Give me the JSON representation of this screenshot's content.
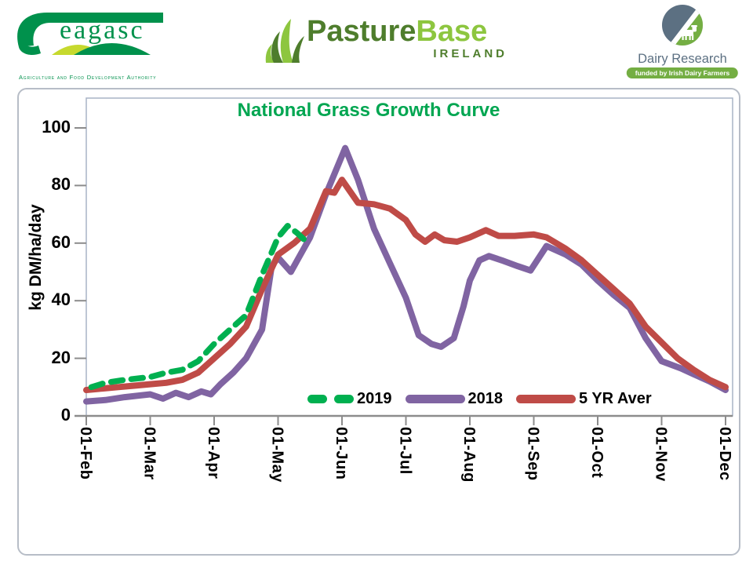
{
  "logos": {
    "teagasc": {
      "wordmark": "eagasc",
      "tagline": "Agriculture and Food Development Authority",
      "green": "#00914c",
      "hill_yellow": "#c6d92e"
    },
    "pasturebase": {
      "word1": "Pasture",
      "word2": "Base",
      "word3": "IRELAND",
      "dark_green": "#4e7d2c",
      "lime": "#8dc63f"
    },
    "dairy_research": {
      "name": "Dairy Research Ireland",
      "tagline": "funded by Irish Dairy Farmers",
      "slate": "#5c7082",
      "green": "#74ae43"
    }
  },
  "chart_data": {
    "type": "line",
    "title": "National Grass Growth Curve",
    "title_color": "#00a651",
    "ylabel": "kg DM/ha/day",
    "ylim": [
      0,
      100
    ],
    "yticks": [
      0,
      20,
      40,
      60,
      80,
      100
    ],
    "grid": false,
    "x_axis": {
      "unit": "months after 01-Feb",
      "tick_positions": [
        0,
        1,
        2,
        3,
        4,
        5,
        6,
        7,
        8,
        9,
        10
      ],
      "tick_labels": [
        "01-Feb",
        "01-Mar",
        "01-Apr",
        "01-May",
        "01-Jun",
        "01-Jul",
        "01-Aug",
        "01-Sep",
        "01-Oct",
        "01-Nov",
        "01-Dec"
      ]
    },
    "legend": {
      "position": "inside-bottom-center",
      "order": [
        "2019",
        "2018",
        "5 YR Aver"
      ]
    },
    "series": [
      {
        "name": "2019",
        "color": "#00b050",
        "style": "dashed",
        "line_width": 7.5,
        "draw_order": 3,
        "points": [
          [
            0.08,
            10
          ],
          [
            0.3,
            11.5
          ],
          [
            0.6,
            12.5
          ],
          [
            1,
            13.5
          ],
          [
            1.25,
            15
          ],
          [
            1.5,
            16
          ],
          [
            1.75,
            19
          ],
          [
            2,
            25
          ],
          [
            2.25,
            30
          ],
          [
            2.5,
            35
          ],
          [
            2.75,
            49
          ],
          [
            3,
            62
          ],
          [
            3.15,
            66
          ],
          [
            3.3,
            63.5
          ],
          [
            3.42,
            61
          ]
        ]
      },
      {
        "name": "2018",
        "color": "#8064a2",
        "style": "solid",
        "line_width": 8,
        "draw_order": 1,
        "points": [
          [
            0,
            5
          ],
          [
            0.3,
            5.5
          ],
          [
            0.6,
            6.5
          ],
          [
            1,
            7.5
          ],
          [
            1.2,
            6
          ],
          [
            1.4,
            8
          ],
          [
            1.6,
            6.5
          ],
          [
            1.8,
            8.5
          ],
          [
            1.95,
            7.5
          ],
          [
            2.1,
            11
          ],
          [
            2.3,
            15
          ],
          [
            2.5,
            20
          ],
          [
            2.75,
            30
          ],
          [
            2.9,
            52
          ],
          [
            3,
            55
          ],
          [
            3.2,
            50
          ],
          [
            3.5,
            62
          ],
          [
            3.75,
            77
          ],
          [
            4.05,
            93
          ],
          [
            4.25,
            82
          ],
          [
            4.5,
            65
          ],
          [
            4.75,
            53
          ],
          [
            5,
            41
          ],
          [
            5.2,
            28
          ],
          [
            5.4,
            25
          ],
          [
            5.55,
            24
          ],
          [
            5.75,
            27
          ],
          [
            5.9,
            38
          ],
          [
            6,
            47
          ],
          [
            6.15,
            54
          ],
          [
            6.3,
            55.5
          ],
          [
            6.5,
            54
          ],
          [
            6.75,
            52
          ],
          [
            6.95,
            50.5
          ],
          [
            7.2,
            59
          ],
          [
            7.5,
            56
          ],
          [
            7.75,
            52.5
          ],
          [
            8,
            47
          ],
          [
            8.25,
            42
          ],
          [
            8.5,
            37.5
          ],
          [
            8.75,
            27
          ],
          [
            9,
            19
          ],
          [
            9.3,
            16.5
          ],
          [
            9.5,
            14.5
          ],
          [
            9.75,
            12
          ],
          [
            10,
            9
          ]
        ]
      },
      {
        "name": "5 YR Aver",
        "color": "#bf4b47",
        "style": "solid",
        "line_width": 8,
        "draw_order": 2,
        "points": [
          [
            0,
            9
          ],
          [
            0.25,
            9.5
          ],
          [
            0.5,
            10
          ],
          [
            0.75,
            10.5
          ],
          [
            1,
            11
          ],
          [
            1.25,
            11.5
          ],
          [
            1.5,
            12.5
          ],
          [
            1.75,
            15
          ],
          [
            2,
            20
          ],
          [
            2.25,
            25
          ],
          [
            2.5,
            31
          ],
          [
            2.75,
            44
          ],
          [
            3,
            56
          ],
          [
            3.25,
            60
          ],
          [
            3.5,
            65
          ],
          [
            3.75,
            78
          ],
          [
            3.88,
            77.5
          ],
          [
            4,
            82
          ],
          [
            4.25,
            74
          ],
          [
            4.5,
            73.5
          ],
          [
            4.75,
            72
          ],
          [
            5,
            68
          ],
          [
            5.15,
            63
          ],
          [
            5.3,
            60.5
          ],
          [
            5.45,
            63
          ],
          [
            5.6,
            61
          ],
          [
            5.8,
            60.5
          ],
          [
            6,
            62
          ],
          [
            6.25,
            64.5
          ],
          [
            6.45,
            62.5
          ],
          [
            6.7,
            62.5
          ],
          [
            7,
            63
          ],
          [
            7.2,
            62
          ],
          [
            7.5,
            58
          ],
          [
            7.75,
            54
          ],
          [
            8,
            49
          ],
          [
            8.25,
            44
          ],
          [
            8.5,
            39
          ],
          [
            8.75,
            31
          ],
          [
            9,
            25.5
          ],
          [
            9.25,
            20
          ],
          [
            9.5,
            16
          ],
          [
            9.75,
            12.5
          ],
          [
            10,
            10
          ]
        ]
      }
    ]
  }
}
